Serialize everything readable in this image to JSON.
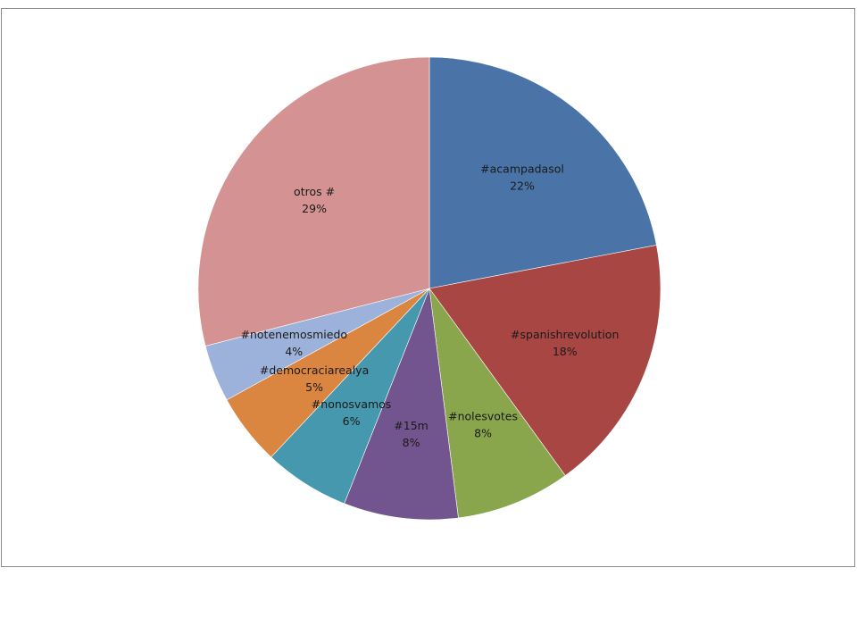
{
  "chart_data": {
    "type": "pie",
    "categories": [
      "#acampadasol",
      "#spanishrevolution",
      "#nolesvotes",
      "#15m",
      "#nonosvamos",
      "#democraciarealya",
      "#notenemosmiedo",
      "otros #"
    ],
    "values": [
      22,
      18,
      8,
      8,
      6,
      5,
      4,
      29
    ],
    "value_labels": [
      "22%",
      "18%",
      "8%",
      "8%",
      "6%",
      "5%",
      "4%",
      "29%"
    ],
    "colors": [
      "#4a74a8",
      "#a84644",
      "#8aa64c",
      "#72558f",
      "#4598ad",
      "#db8640",
      "#9db2db",
      "#d49292"
    ],
    "legend": "none",
    "title": ""
  }
}
